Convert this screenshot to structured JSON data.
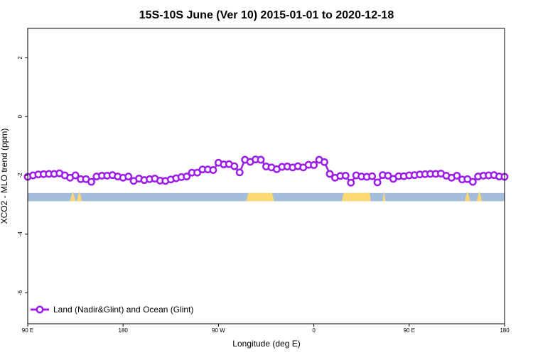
{
  "chart_data": {
    "type": "line",
    "title": "15S-10S June (Ver 10)   2015-01-01 to 2020-12-18",
    "xlabel": "Longitude (deg E)",
    "ylabel": "XCO2 - MLO trend (ppm)",
    "xlim": [
      90,
      450
    ],
    "ylim": [
      -7.05,
      3.0
    ],
    "x_ticks": [
      {
        "value": 90,
        "label": "90 E"
      },
      {
        "value": 162,
        "label": "180"
      },
      {
        "value": 234,
        "label": "90 W"
      },
      {
        "value": 306,
        "label": "0"
      },
      {
        "value": 378,
        "label": "90 E"
      },
      {
        "value": 450,
        "label": "180"
      }
    ],
    "y_ticks": [
      2,
      0,
      -2,
      -4,
      -6
    ],
    "legend": {
      "label": "Land (Nadir&Glint) and Ocean (Glint)",
      "position": "bottom-left"
    },
    "series": [
      {
        "name": "Land (Nadir&Glint) and Ocean (Glint)",
        "color": "#9b1fe8",
        "points": [
          [
            90,
            -2.05
          ],
          [
            94,
            -2.0
          ],
          [
            98,
            -1.97
          ],
          [
            102,
            -1.96
          ],
          [
            106,
            -1.95
          ],
          [
            110,
            -1.95
          ],
          [
            114,
            -1.93
          ],
          [
            118,
            -2.0
          ],
          [
            122,
            -2.08
          ],
          [
            126,
            -2.0
          ],
          [
            130,
            -2.13
          ],
          [
            134,
            -2.13
          ],
          [
            138,
            -2.22
          ],
          [
            142,
            -2.04
          ],
          [
            146,
            -2.01
          ],
          [
            150,
            -2.01
          ],
          [
            154,
            -1.99
          ],
          [
            158,
            -2.04
          ],
          [
            162,
            -2.08
          ],
          [
            166,
            -2.04
          ],
          [
            170,
            -2.19
          ],
          [
            174,
            -2.11
          ],
          [
            178,
            -2.16
          ],
          [
            182,
            -2.13
          ],
          [
            186,
            -2.11
          ],
          [
            190,
            -2.18
          ],
          [
            194,
            -2.19
          ],
          [
            198,
            -2.14
          ],
          [
            202,
            -2.1
          ],
          [
            206,
            -2.06
          ],
          [
            210,
            -2.04
          ],
          [
            214,
            -1.91
          ],
          [
            218,
            -1.91
          ],
          [
            222,
            -1.8
          ],
          [
            226,
            -1.8
          ],
          [
            230,
            -1.82
          ],
          [
            234,
            -1.57
          ],
          [
            238,
            -1.63
          ],
          [
            242,
            -1.62
          ],
          [
            246,
            -1.69
          ],
          [
            250,
            -1.9
          ],
          [
            254,
            -1.47
          ],
          [
            258,
            -1.54
          ],
          [
            262,
            -1.46
          ],
          [
            266,
            -1.47
          ],
          [
            270,
            -1.7
          ],
          [
            274,
            -1.73
          ],
          [
            278,
            -1.79
          ],
          [
            282,
            -1.71
          ],
          [
            286,
            -1.7
          ],
          [
            290,
            -1.73
          ],
          [
            294,
            -1.69
          ],
          [
            298,
            -1.73
          ],
          [
            302,
            -1.64
          ],
          [
            306,
            -1.65
          ],
          [
            310,
            -1.47
          ],
          [
            314,
            -1.55
          ],
          [
            318,
            -1.95
          ],
          [
            322,
            -2.08
          ],
          [
            326,
            -2.02
          ],
          [
            330,
            -2.01
          ],
          [
            334,
            -2.25
          ],
          [
            338,
            -2.0
          ],
          [
            342,
            -2.04
          ],
          [
            346,
            -2.05
          ],
          [
            350,
            -2.03
          ],
          [
            354,
            -2.24
          ],
          [
            358,
            -1.99
          ],
          [
            362,
            -2.01
          ],
          [
            366,
            -2.12
          ],
          [
            370,
            -2.03
          ],
          [
            374,
            -2.03
          ],
          [
            378,
            -2.0
          ],
          [
            382,
            -1.99
          ],
          [
            386,
            -1.97
          ],
          [
            390,
            -1.96
          ],
          [
            394,
            -1.95
          ],
          [
            398,
            -1.95
          ],
          [
            402,
            -1.94
          ],
          [
            406,
            -2.01
          ],
          [
            410,
            -2.08
          ],
          [
            414,
            -2.01
          ],
          [
            418,
            -2.14
          ],
          [
            422,
            -2.13
          ],
          [
            426,
            -2.22
          ],
          [
            430,
            -2.04
          ],
          [
            434,
            -2.01
          ],
          [
            438,
            -2.0
          ],
          [
            442,
            -1.99
          ],
          [
            446,
            -2.04
          ],
          [
            450,
            -2.05
          ]
        ]
      }
    ],
    "surface_strip": {
      "y_range": [
        -2.88,
        -2.6
      ],
      "ocean_color": "#a4bddb",
      "land_color": "#fcd973",
      "land_blocks": [
        [
          255,
          276
        ],
        [
          327,
          349
        ]
      ],
      "land_bumps": [
        [
          124,
          2
        ],
        [
          129,
          2
        ],
        [
          348,
          1
        ],
        [
          359,
          1
        ],
        [
          422,
          2
        ],
        [
          431,
          2
        ]
      ]
    }
  }
}
